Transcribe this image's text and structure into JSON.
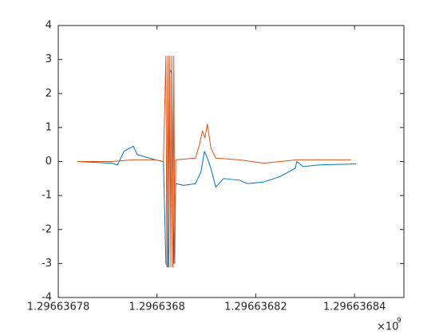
{
  "chart_data": {
    "type": "line",
    "xlim": [
      1.29663678,
      1.29663685
    ],
    "xticks": [
      1.29663678,
      1.2966368,
      1.29663682,
      1.29663684
    ],
    "x_multiplier": {
      "base": "×10",
      "exponent": "9"
    },
    "ylim": [
      -4,
      4
    ],
    "yticks": [
      -4,
      -3,
      -2,
      -1,
      0,
      1,
      2,
      3,
      4
    ],
    "grid": false,
    "series": [
      {
        "color": "#0072bd",
        "x": [
          1.2966367839,
          1.2966367908,
          1.296636792,
          1.2966367933,
          1.2966367952,
          1.296636796,
          1.2966367973,
          1.2966367997,
          1.2966368013,
          1.2966368018,
          1.2966368022,
          1.2966368026,
          1.296636803,
          1.2966368034,
          1.2966368038,
          1.2966368054,
          1.2966368078,
          1.2966368089,
          1.2966368096,
          1.2966368102,
          1.2966368109,
          1.2966368119,
          1.2966368135,
          1.2966368167,
          1.2966368183,
          1.2966368216,
          1.2966368248,
          1.296636828,
          1.2966368283,
          1.2966368296,
          1.2966368329,
          1.2966368403
        ],
        "values": [
          0,
          -0.05,
          -0.1,
          0.3,
          0.45,
          0.2,
          0.15,
          0.05,
          0,
          -3.0,
          -3.1,
          2.7,
          2.6,
          -3.0,
          -0.65,
          -0.7,
          -0.65,
          -0.3,
          0.3,
          0.1,
          -0.2,
          -0.75,
          -0.5,
          -0.55,
          -0.65,
          -0.6,
          -0.45,
          -0.2,
          0,
          -0.15,
          -0.1,
          -0.07
        ]
      },
      {
        "color": "#d95319",
        "x": [
          1.2966367839,
          1.2966367908,
          1.2966367952,
          1.2966367997,
          1.2966368013,
          1.2966368018,
          1.296636802,
          1.2966368022,
          1.2966368024,
          1.2966368026,
          1.2966368028,
          1.296636803,
          1.2966368032,
          1.2966368034,
          1.2966368036,
          1.2966368038,
          1.2966368078,
          1.2966368086,
          1.2966368092,
          1.2966368097,
          1.2966368102,
          1.2966368109,
          1.2966368119,
          1.2966368167,
          1.2966368216,
          1.2966368283,
          1.2966368393
        ],
        "values": [
          0,
          0,
          0.05,
          0.05,
          0,
          3.1,
          -3.1,
          3.1,
          -3.1,
          3.1,
          -3.1,
          3.1,
          -3.1,
          3.1,
          -3.0,
          0.05,
          0.1,
          0.5,
          0.9,
          0.7,
          1.1,
          0.4,
          0.1,
          0.05,
          -0.05,
          0.05,
          0.05
        ]
      }
    ]
  }
}
